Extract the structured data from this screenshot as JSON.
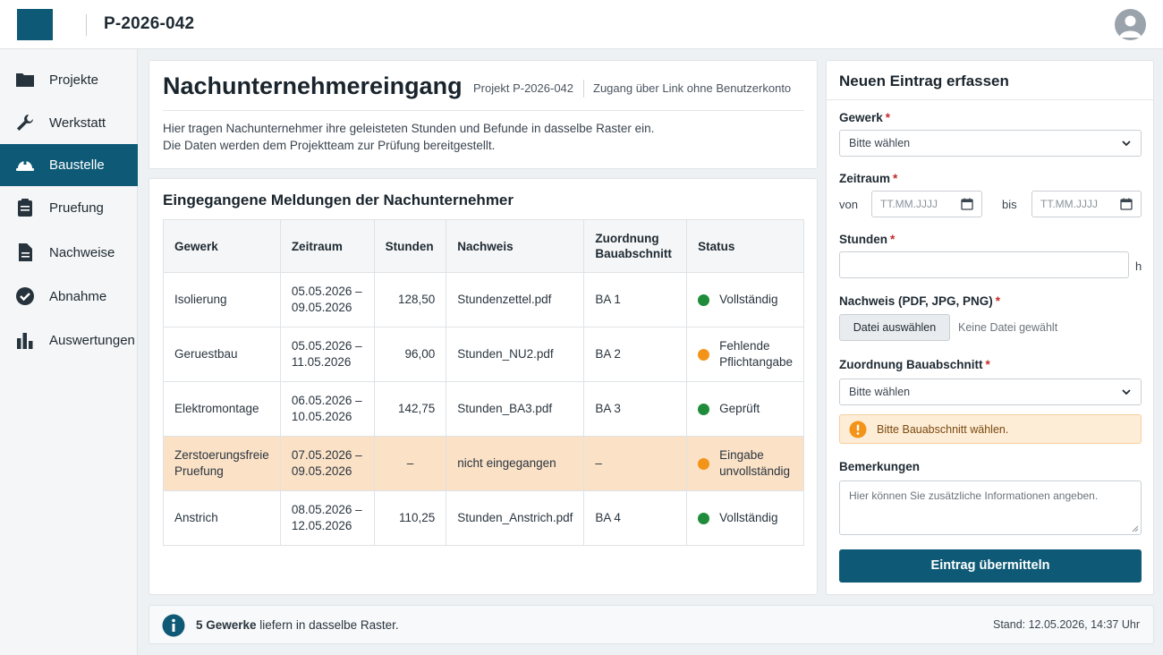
{
  "header": {
    "project_id": "P-2026-042"
  },
  "sidebar": {
    "items": [
      {
        "label": "Projekte",
        "icon": "folder-icon"
      },
      {
        "label": "Werkstatt",
        "icon": "wrench-icon"
      },
      {
        "label": "Baustelle",
        "icon": "hard-hat-icon",
        "active": true
      },
      {
        "label": "Pruefung",
        "icon": "clipboard-icon"
      },
      {
        "label": "Nachweise",
        "icon": "document-icon"
      },
      {
        "label": "Abnahme",
        "icon": "check-circle-icon"
      },
      {
        "label": "Auswertungen",
        "icon": "bar-chart-icon"
      }
    ]
  },
  "intro": {
    "title": "Nachunternehmereingang",
    "project": "Projekt P-2026-042",
    "access": "Zugang über Link ohne Benutzerkonto",
    "desc_line1": "Hier tragen Nachunternehmer ihre geleisteten Stunden und Befunde in dasselbe Raster ein.",
    "desc_line2": "Die Daten werden dem Projektteam zur Prüfung bereitgestellt."
  },
  "table": {
    "title": "Eingegangene Meldungen der Nachunternehmer",
    "headers": {
      "gewerk": "Gewerk",
      "zeitraum": "Zeitraum",
      "stunden": "Stunden",
      "nachweis": "Nachweis",
      "zuordnung_1": "Zuordnung",
      "zuordnung_2": "Bauabschnitt",
      "status": "Status"
    },
    "rows": [
      {
        "gewerk_1": "Isolierung",
        "gewerk_2": "",
        "zeit_1": "05.05.2026 –",
        "zeit_2": "09.05.2026",
        "stunden": "128,50",
        "nachweis": "Stundenzettel.pdf",
        "ba": "BA 1",
        "status_1": "Vollständig",
        "status_2": "",
        "status_color": "green"
      },
      {
        "gewerk_1": "Geruestbau",
        "gewerk_2": "",
        "zeit_1": "05.05.2026 –",
        "zeit_2": "11.05.2026",
        "stunden": "96,00",
        "nachweis": "Stunden_NU2.pdf",
        "ba": "BA 2",
        "status_1": "Fehlende",
        "status_2": "Pflichtangabe",
        "status_color": "orange"
      },
      {
        "gewerk_1": "Elektromontage",
        "gewerk_2": "",
        "zeit_1": "06.05.2026 –",
        "zeit_2": "10.05.2026",
        "stunden": "142,75",
        "nachweis": "Stunden_BA3.pdf",
        "ba": "BA 3",
        "status_1": "Geprüft",
        "status_2": "",
        "status_color": "green"
      },
      {
        "gewerk_1": "Zerstoerungsfreie",
        "gewerk_2": "Pruefung",
        "zeit_1": "07.05.2026 –",
        "zeit_2": "09.05.2026",
        "stunden": "–",
        "nachweis": "nicht eingegangen",
        "ba": "–",
        "status_1": "Eingabe",
        "status_2": "unvollständig",
        "status_color": "orange"
      },
      {
        "gewerk_1": "Anstrich",
        "gewerk_2": "",
        "zeit_1": "08.05.2026 –",
        "zeit_2": "12.05.2026",
        "stunden": "110,25",
        "nachweis": "Stunden_Anstrich.pdf",
        "ba": "BA 4",
        "status_1": "Vollständig",
        "status_2": "",
        "status_color": "green"
      }
    ]
  },
  "footer": {
    "count": "5 Gewerke",
    "text": " liefern in dasselbe Raster.",
    "stand": "Stand: 12.05.2026, 14:37 Uhr"
  },
  "form": {
    "title": "Neuen Eintrag erfassen",
    "gewerk_label": "Gewerk",
    "gewerk_value": "Bitte wählen",
    "zeitraum_label": "Zeitraum",
    "von": "von",
    "bis": "bis",
    "date_placeholder": "TT.MM.JJJJ",
    "stunden_label": "Stunden",
    "unit": "h",
    "nachweis_label": "Nachweis (PDF, JPG, PNG)",
    "file_button": "Datei auswählen",
    "no_file": "Keine Datei gewählt",
    "zuordnung_label": "Zuordnung Bauabschnitt",
    "zuordnung_value": "Bitte wählen",
    "alert": "Bitte Bauabschnitt wählen.",
    "bemerkungen_label": "Bemerkungen",
    "bemerkungen_placeholder": "Hier können Sie zusätzliche Informationen angeben.",
    "submit": "Eintrag übermitteln",
    "required_mark": "*"
  },
  "colors": {
    "brand": "#0e5a76",
    "status_green": "#1e8c3a",
    "status_orange": "#f39419",
    "warn_row": "#fbe1c6",
    "required": "#c62828"
  }
}
